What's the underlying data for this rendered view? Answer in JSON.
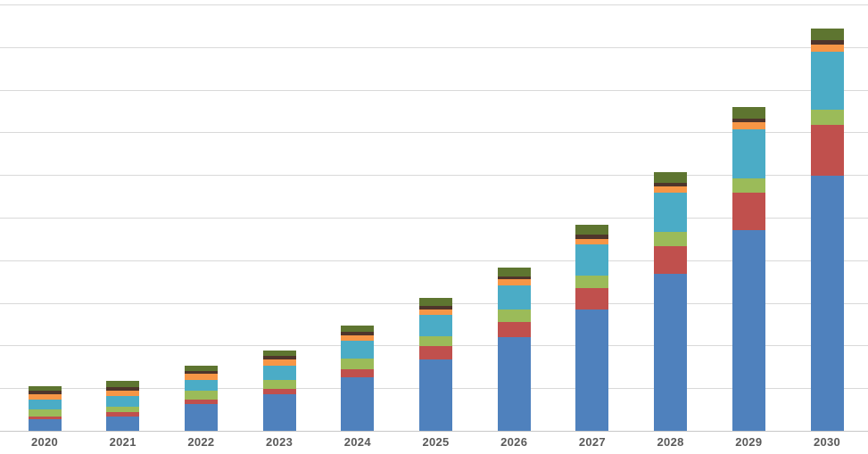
{
  "chart_data": {
    "type": "bar",
    "stacked": true,
    "title": "",
    "categories": [
      "2020",
      "2021",
      "2022",
      "2023",
      "2024",
      "2025",
      "2026",
      "2027",
      "2028",
      "2029",
      "2030"
    ],
    "series": [
      {
        "name": "blue",
        "color": "#4F81BD",
        "values": [
          2.7,
          3.4,
          6.3,
          8.5,
          12.5,
          16.8,
          21.9,
          28.4,
          36.9,
          47.1,
          59.9
        ]
      },
      {
        "name": "red",
        "color": "#C0504D",
        "values": [
          0.7,
          0.9,
          1.1,
          1.4,
          1.9,
          3.0,
          3.7,
          5.0,
          6.4,
          8.8,
          11.9
        ]
      },
      {
        "name": "light-green",
        "color": "#9BBB59",
        "values": [
          1.6,
          1.4,
          2.0,
          2.1,
          2.6,
          2.3,
          2.8,
          3.1,
          3.4,
          3.4,
          3.5
        ]
      },
      {
        "name": "teal",
        "color": "#4BACC6",
        "values": [
          2.3,
          2.4,
          2.5,
          3.3,
          4.1,
          5.2,
          5.8,
          7.2,
          9.2,
          11.4,
          13.7
        ]
      },
      {
        "name": "orange",
        "color": "#F79646",
        "values": [
          1.3,
          1.4,
          1.4,
          1.4,
          1.3,
          1.2,
          1.3,
          1.3,
          1.4,
          1.7,
          1.6
        ]
      },
      {
        "name": "dark-brown",
        "color": "#4F352B",
        "values": [
          0.8,
          0.7,
          0.7,
          0.8,
          0.8,
          0.9,
          0.8,
          1.0,
          0.9,
          0.9,
          1.0
        ]
      },
      {
        "name": "dark-green",
        "color": "#5E7530",
        "values": [
          1.0,
          1.5,
          1.3,
          1.3,
          1.5,
          1.8,
          2.0,
          2.3,
          2.4,
          2.6,
          2.8
        ]
      }
    ],
    "xlabel": "",
    "ylabel": "",
    "ylim": [
      0,
      100
    ],
    "gridline_step": 10,
    "grid": true,
    "legend": "none",
    "y_tick_labels_visible": false
  },
  "styles": {
    "background": "#FFFFFF",
    "gridline_color": "#D9D9D9",
    "axis_line_color": "#C8C8C8",
    "x_label_color": "#595959"
  }
}
